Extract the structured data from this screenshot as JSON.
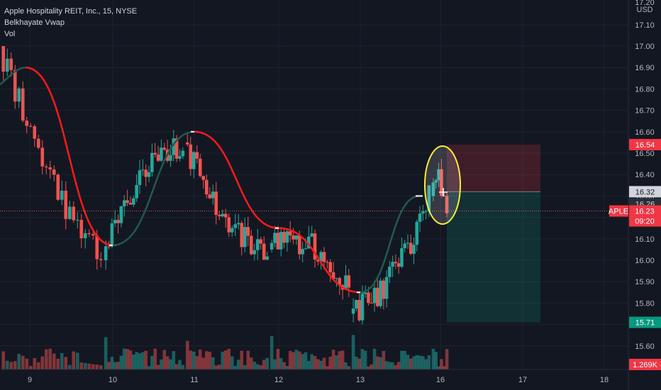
{
  "header": {
    "title": "Apple Hospitality REIT, Inc., 15, NYSE",
    "indicator": "Belkhayate Vwap",
    "volume_label": "Vol"
  },
  "price_axis": {
    "currency": "USD",
    "top_partial": "17.20",
    "ticks": [
      "17.10",
      "17.00",
      "16.90",
      "16.80",
      "16.70",
      "16.60",
      "16.50",
      "16.40",
      "16.30",
      "16.20",
      "16.10",
      "16.00",
      "15.90",
      "15.80",
      "15.70",
      "15.60"
    ]
  },
  "price_tags": {
    "target": {
      "value": "16.54",
      "color": "#f23645"
    },
    "entry": {
      "value": "16.32",
      "color": "#d1d4dc"
    },
    "mid": {
      "value": "16.26",
      "color": "#2a2e39"
    },
    "symbol": "APLE",
    "last": {
      "value": "16.23",
      "color": "#f23645"
    },
    "countdown": "09:20",
    "stop": {
      "value": "15.71",
      "color": "#089981"
    },
    "volume": {
      "value": "1.269K",
      "color": "#f23645"
    }
  },
  "time_axis": {
    "labels": [
      "9",
      "10",
      "11",
      "12",
      "13",
      "16",
      "17",
      "18"
    ]
  },
  "colors": {
    "up": "#26a69a",
    "down": "#ef5350",
    "vwap_down": "#ff1a1a",
    "vwap_up": "#1e5b4f",
    "highlight": "#ffeb3b"
  },
  "chart_data": {
    "type": "candlestick",
    "symbol": "APLE",
    "interval": "15",
    "ylim": [
      15.58,
      17.22
    ],
    "sessions": [
      {
        "day": "9",
        "open": 17.0,
        "close": 16.0,
        "high": 17.0,
        "low": 15.9
      },
      {
        "day": "10",
        "open": 16.0,
        "close": 16.55,
        "high": 16.7,
        "low": 15.8
      },
      {
        "day": "11",
        "open": 16.55,
        "close": 16.05,
        "high": 16.84,
        "low": 16.0
      },
      {
        "day": "12",
        "open": 16.05,
        "close": 15.85,
        "high": 16.2,
        "low": 15.68
      },
      {
        "day": "13",
        "open": 15.75,
        "close": 16.3,
        "high": 16.35,
        "low": 15.7
      },
      {
        "day": "16",
        "open": 16.3,
        "close": 16.23,
        "high": 16.54,
        "low": 16.2
      }
    ],
    "indicator_series": {
      "name": "Belkhayate Vwap",
      "x": [
        "9",
        "10",
        "11",
        "12",
        "13",
        "16"
      ],
      "values": [
        16.9,
        16.07,
        16.6,
        16.15,
        15.85,
        16.3
      ]
    },
    "position": {
      "target": 16.54,
      "entry": 16.32,
      "stop": 15.71
    },
    "last_price": 16.23,
    "last_volume": "1.269K"
  }
}
